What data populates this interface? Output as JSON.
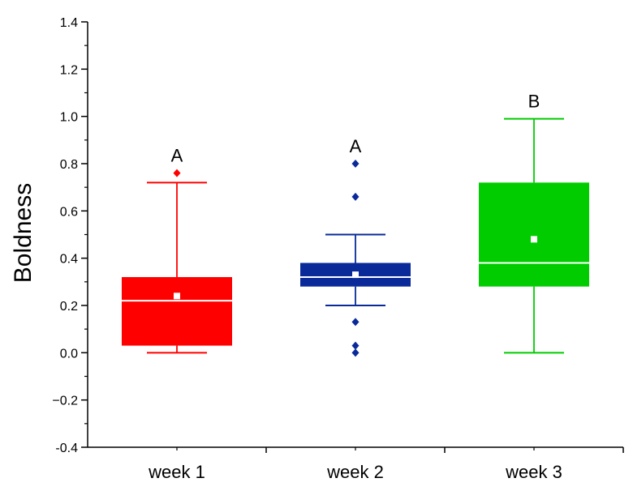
{
  "chart_data": {
    "type": "box",
    "title": "",
    "xlabel": "",
    "ylabel": "Boldness",
    "ylim": [
      -0.4,
      1.4
    ],
    "yticks": [
      -0.4,
      -0.2,
      0.0,
      0.2,
      0.4,
      0.6,
      0.8,
      1.0,
      1.2,
      1.4
    ],
    "ytick_labels": [
      "-0.4",
      "−0.2",
      "0.0",
      "0.2",
      "0.4",
      "0.6",
      "0.8",
      "1.0",
      "1.2",
      "1.4"
    ],
    "categories": [
      "week 1",
      "week 2",
      "week 3"
    ],
    "grid": false,
    "series": [
      {
        "category": "week 1",
        "color": "#ff0000",
        "whisker_low": 0.0,
        "q1": 0.03,
        "median": 0.22,
        "q3": 0.32,
        "whisker_high": 0.72,
        "mean": 0.24,
        "outliers": [
          0.76
        ],
        "significance": "A"
      },
      {
        "category": "week 2",
        "color": "#0a2a9a",
        "whisker_low": 0.2,
        "q1": 0.28,
        "median": 0.32,
        "q3": 0.38,
        "whisker_high": 0.5,
        "mean": 0.33,
        "outliers": [
          0.0,
          0.03,
          0.13,
          0.66,
          0.8
        ],
        "significance": "A"
      },
      {
        "category": "week 3",
        "color": "#00cc00",
        "whisker_low": 0.0,
        "q1": 0.28,
        "median": 0.38,
        "q3": 0.72,
        "whisker_high": 0.99,
        "mean": 0.48,
        "outliers": [],
        "significance": "B"
      }
    ]
  }
}
